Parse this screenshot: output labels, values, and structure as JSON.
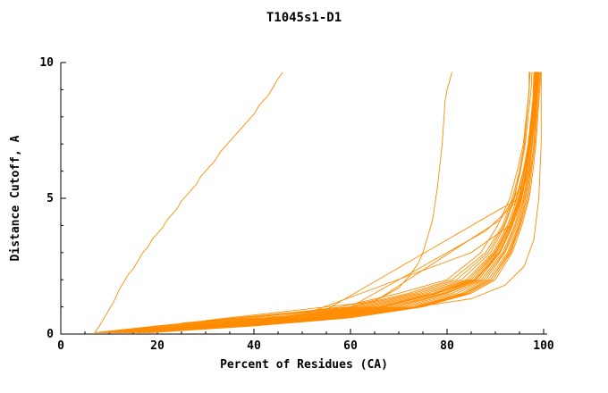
{
  "chart_data": {
    "type": "line",
    "title": "T1045s1-D1",
    "xlabel": "Percent of Residues (CA)",
    "ylabel": "Distance Cutoff, A",
    "xlim": [
      0,
      101
    ],
    "ylim": [
      0,
      10
    ],
    "x_major_ticks": [
      0,
      20,
      40,
      60,
      80,
      100
    ],
    "x_minor_step": 5,
    "y_major_ticks": [
      0,
      5,
      10
    ],
    "y_minor_step": 1,
    "grid": false,
    "legend": "none",
    "line_color": "#ff8c00",
    "axis_color": "#000000",
    "y_levels": [
      0.05,
      0.3,
      0.6,
      1.0,
      1.5,
      2,
      3,
      4,
      5,
      6,
      7,
      8,
      9,
      9.65
    ],
    "series": [
      {
        "points": [
          [
            7,
            0.05
          ],
          [
            8,
            0.3
          ],
          [
            9,
            0.6
          ],
          [
            10,
            0.9
          ],
          [
            11,
            1.2
          ],
          [
            12,
            1.6
          ],
          [
            13,
            1.9
          ],
          [
            14,
            2.2
          ],
          [
            15,
            2.4
          ],
          [
            16,
            2.7
          ],
          [
            17,
            3.0
          ],
          [
            18,
            3.2
          ],
          [
            19,
            3.5
          ],
          [
            20,
            3.7
          ],
          [
            21,
            3.9
          ],
          [
            22,
            4.2
          ],
          [
            24,
            4.6
          ],
          [
            25,
            4.9
          ],
          [
            26,
            5.1
          ],
          [
            28,
            5.5
          ],
          [
            29,
            5.8
          ],
          [
            30,
            6.0
          ],
          [
            32,
            6.4
          ],
          [
            33,
            6.7
          ],
          [
            35,
            7.1
          ],
          [
            36,
            7.3
          ],
          [
            38,
            7.7
          ],
          [
            40,
            8.1
          ],
          [
            41,
            8.4
          ],
          [
            43,
            8.8
          ],
          [
            44,
            9.1
          ],
          [
            45,
            9.4
          ],
          [
            46,
            9.65
          ]
        ]
      },
      {
        "points": [
          [
            10,
            0.1
          ],
          [
            20,
            0.3
          ],
          [
            35,
            0.55
          ],
          [
            50,
            0.8
          ],
          [
            60,
            1.0
          ],
          [
            66,
            1.3
          ],
          [
            70,
            1.7
          ],
          [
            72,
            2.1
          ],
          [
            74,
            2.6
          ],
          [
            75,
            3.0
          ],
          [
            76,
            3.6
          ],
          [
            77,
            4.2
          ],
          [
            77.5,
            4.8
          ],
          [
            78,
            5.4
          ],
          [
            78.5,
            6.2
          ],
          [
            79,
            7.0
          ],
          [
            79.3,
            7.8
          ],
          [
            79.6,
            8.6
          ],
          [
            80,
            9.0
          ],
          [
            80.5,
            9.3
          ],
          [
            81,
            9.65
          ]
        ]
      },
      {
        "points": [
          [
            20,
            0.3
          ],
          [
            55,
            0.9
          ],
          [
            90,
            4.5
          ],
          [
            95,
            5.0
          ],
          [
            97,
            6.0
          ],
          [
            98,
            8.0
          ],
          [
            98.5,
            9.65
          ]
        ]
      },
      {
        "points": [
          [
            15,
            0.2
          ],
          [
            50,
            0.7
          ],
          [
            85,
            3.0
          ],
          [
            93,
            4.0
          ],
          [
            96,
            5.5
          ],
          [
            97.5,
            7.5
          ],
          [
            98,
            9.65
          ]
        ]
      },
      {
        "points": [
          [
            25,
            0.4
          ],
          [
            60,
            1.0
          ],
          [
            88,
            3.8
          ],
          [
            94,
            4.8
          ],
          [
            96.5,
            6.5
          ],
          [
            98,
            8.5
          ],
          [
            98.7,
            9.65
          ]
        ]
      },
      {
        "points": [
          [
            30,
            0.5
          ],
          [
            65,
            1.2
          ],
          [
            91,
            4.2
          ],
          [
            95.5,
            5.5
          ],
          [
            97,
            7.0
          ],
          [
            98.5,
            9.0
          ],
          [
            99,
            9.65
          ]
        ]
      },
      {
        "points": [
          [
            19,
            0.2
          ],
          [
            45,
            0.5
          ],
          [
            70,
            0.9
          ],
          [
            85,
            1.3
          ],
          [
            92,
            1.8
          ],
          [
            96,
            2.5
          ],
          [
            98,
            3.5
          ],
          [
            99,
            5.0
          ],
          [
            99.5,
            7.0
          ],
          [
            99.5,
            9.65
          ]
        ]
      },
      {
        "x": [
          9,
          25,
          45,
          62,
          74,
          83,
          89,
          92,
          94,
          95,
          96,
          96.5,
          97,
          97
        ]
      },
      {
        "x": [
          11,
          30,
          52,
          68,
          79,
          86,
          91,
          93.5,
          95,
          96,
          97,
          97.5,
          98,
          98
        ]
      },
      {
        "x": [
          14,
          35,
          55,
          72,
          82,
          88,
          92,
          94.5,
          96,
          97,
          97.5,
          98,
          98.5,
          98.5
        ]
      },
      {
        "x": [
          8,
          22,
          42,
          60,
          72,
          81,
          88,
          91.5,
          93.5,
          95,
          96,
          96.5,
          97,
          97.2
        ]
      },
      {
        "x": [
          16,
          38,
          58,
          74,
          84,
          89,
          93,
          95,
          96.5,
          97.2,
          98,
          98.3,
          98.7,
          99
        ]
      },
      {
        "x": [
          10,
          28,
          48,
          65,
          77,
          85,
          90,
          93,
          95,
          96,
          97,
          97.6,
          98.2,
          98.4
        ]
      },
      {
        "x": [
          13,
          33,
          53,
          70,
          80,
          87,
          91.5,
          94,
          95.5,
          96.6,
          97.3,
          98,
          98.5,
          98.8
        ]
      },
      {
        "x": [
          18,
          40,
          60,
          75,
          85,
          90,
          93.5,
          95.5,
          97,
          97.8,
          98.4,
          98.8,
          99.2,
          99.4
        ]
      },
      {
        "x": [
          9,
          26,
          46,
          63,
          75,
          84,
          89.5,
          92.5,
          94.5,
          95.8,
          96.8,
          97.4,
          98,
          98.2
        ]
      },
      {
        "x": [
          12,
          31,
          51,
          67,
          78,
          86,
          90.5,
          93.2,
          95.2,
          96.3,
          97.1,
          97.8,
          98.3,
          98.6
        ]
      },
      {
        "x": [
          15,
          36,
          56,
          73,
          83,
          88.5,
          92.5,
          94.8,
          96.2,
          97,
          97.7,
          98.2,
          98.6,
          98.9
        ]
      },
      {
        "x": [
          7,
          20,
          40,
          58,
          70,
          80,
          87,
          90.5,
          93,
          94.5,
          95.8,
          96.4,
          97,
          97.1
        ]
      },
      {
        "x": [
          17,
          39,
          59,
          74.5,
          84.5,
          89.5,
          93.2,
          95.2,
          96.8,
          97.5,
          98.2,
          98.6,
          99,
          99.3
        ]
      },
      {
        "x": [
          11,
          29,
          49,
          66,
          77.5,
          85.5,
          90.2,
          93,
          95,
          96.1,
          97,
          97.7,
          98.2,
          98.5
        ]
      },
      {
        "x": [
          14,
          34,
          54,
          71,
          81,
          87.5,
          91.8,
          94.2,
          95.8,
          96.8,
          97.5,
          98.1,
          98.5,
          98.8
        ]
      },
      {
        "x": [
          10,
          27,
          47,
          64,
          76,
          84.5,
          89.8,
          92.8,
          94.8,
          96,
          96.9,
          97.5,
          98.1,
          98.3
        ]
      },
      {
        "x": [
          13,
          32,
          52,
          69,
          79.5,
          86.5,
          91,
          93.6,
          95.4,
          96.5,
          97.2,
          97.9,
          98.4,
          98.7
        ]
      },
      {
        "x": [
          16,
          37,
          57,
          73.5,
          83.5,
          89,
          92.8,
          95,
          96.5,
          97.3,
          98,
          98.4,
          98.8,
          99.1
        ]
      },
      {
        "x": [
          8,
          24,
          44,
          61,
          73,
          82,
          88.5,
          91.8,
          93.8,
          95.2,
          96.2,
          96.8,
          97.4,
          97.6
        ]
      },
      {
        "x": [
          12,
          30,
          50,
          66.5,
          78,
          85.8,
          90.8,
          93.4,
          95.3,
          96.4,
          97.2,
          97.8,
          98.3,
          98.6
        ]
      }
    ]
  }
}
